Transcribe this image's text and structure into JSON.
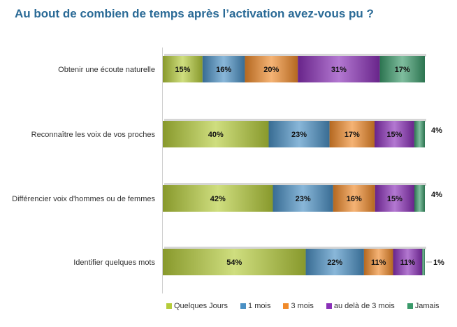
{
  "chart_data": {
    "type": "bar",
    "orientation": "horizontal",
    "stacked": "100%",
    "title": "Au bout de combien de temps après l’activation avez-vous pu ?",
    "categories": [
      "Obtenir une écoute naturelle",
      "Reconnaître les voix de vos proches",
      "Différencier voix d'hommes ou de femmes",
      "Identifier quelques mots"
    ],
    "series": [
      {
        "name": "Quelques Jours",
        "color": "#b5cc3a",
        "values": [
          15,
          40,
          42,
          54
        ]
      },
      {
        "name": "1 mois",
        "color": "#4a90c4",
        "values": [
          16,
          23,
          23,
          22
        ]
      },
      {
        "name": "3 mois",
        "color": "#f08a2a",
        "values": [
          20,
          17,
          16,
          11
        ]
      },
      {
        "name": "au delà de 3 mois",
        "color": "#8a30b8",
        "values": [
          31,
          15,
          15,
          11
        ]
      },
      {
        "name": "Jamais",
        "color": "#3a9a6a",
        "values": [
          17,
          4,
          4,
          1
        ]
      }
    ],
    "value_suffix": "%",
    "legend": "bottom",
    "grid": false
  }
}
